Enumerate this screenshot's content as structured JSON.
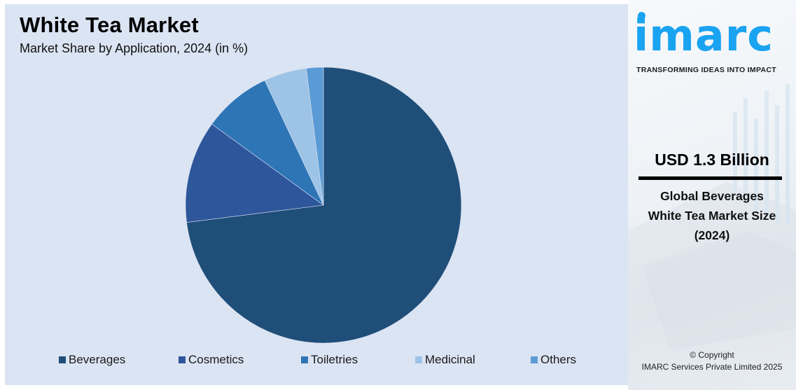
{
  "header": {
    "title": "White Tea Market",
    "subtitle": "Market Share by Application, 2024 (in %)"
  },
  "legend": [
    {
      "label": "Beverages",
      "color": "#1f4e79"
    },
    {
      "label": "Cosmetics",
      "color": "#2e569b"
    },
    {
      "label": "Toiletries",
      "color": "#2e75b6"
    },
    {
      "label": "Medicinal",
      "color": "#9dc3e6"
    },
    {
      "label": "Others",
      "color": "#5b9bd5"
    }
  ],
  "side_panel": {
    "logo_text": "imarc",
    "tagline": "TRANSFORMING IDEAS INTO IMPACT",
    "stat_value": "USD 1.3 Billion",
    "stat_caption_line1": "Global Beverages",
    "stat_caption_line2": "White Tea Market Size",
    "stat_caption_line3": "(2024)",
    "copyright_line1": "© Copyright",
    "copyright_line2": "IMARC Services Private Limited 2025"
  },
  "colors": {
    "panel_bg": "#dbe4f3",
    "brand": "#1aa3f0"
  },
  "chart_data": {
    "type": "pie",
    "title": "White Tea Market",
    "subtitle": "Market Share by Application, 2024 (in %)",
    "categories": [
      "Beverages",
      "Cosmetics",
      "Toiletries",
      "Medicinal",
      "Others"
    ],
    "values": [
      73,
      12,
      8,
      5,
      2
    ],
    "colors": [
      "#1f4e79",
      "#2e569b",
      "#2e75b6",
      "#9dc3e6",
      "#5b9bd5"
    ],
    "start_angle_deg": 0,
    "direction": "clockwise",
    "legend_position": "bottom",
    "data_labels": false
  }
}
